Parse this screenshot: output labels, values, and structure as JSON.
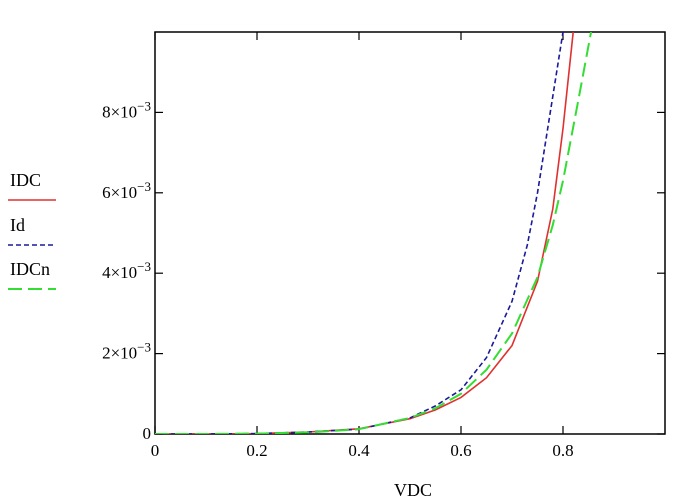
{
  "chart_data": {
    "type": "line",
    "xlabel": "VDC",
    "ylabel": "",
    "xlim": [
      0,
      1.0
    ],
    "ylim": [
      0,
      0.01
    ],
    "x_ticks": [
      {
        "value": 0,
        "label": "0"
      },
      {
        "value": 0.2,
        "label": "0.2"
      },
      {
        "value": 0.4,
        "label": "0.4"
      },
      {
        "value": 0.6,
        "label": "0.6"
      },
      {
        "value": 0.8,
        "label": "0.8"
      }
    ],
    "y_ticks": [
      {
        "value": 0,
        "label": "0",
        "mantissa": "",
        "exponent": ""
      },
      {
        "value": 0.002,
        "label": "2×10⁻³",
        "mantissa": "2",
        "exponent": "−3"
      },
      {
        "value": 0.004,
        "label": "4×10⁻³",
        "mantissa": "4",
        "exponent": "−3"
      },
      {
        "value": 0.006,
        "label": "6×10⁻³",
        "mantissa": "6",
        "exponent": "−3"
      },
      {
        "value": 0.008,
        "label": "8×10⁻³",
        "mantissa": "8",
        "exponent": "−3"
      }
    ],
    "grid": false,
    "legend_position": "left",
    "series": [
      {
        "name": "IDC",
        "color": "#e03030",
        "dash": "solid",
        "x": [
          0,
          0.1,
          0.2,
          0.3,
          0.4,
          0.5,
          0.55,
          0.6,
          0.65,
          0.7,
          0.75,
          0.78,
          0.8,
          0.82
        ],
        "y": [
          0,
          0,
          1e-05,
          5e-05,
          0.00013,
          0.00038,
          0.0006,
          0.00091,
          0.0014,
          0.0022,
          0.0038,
          0.0056,
          0.0076,
          0.01
        ]
      },
      {
        "name": "Id",
        "color": "#1a1a9a",
        "dash": "short-dash",
        "x": [
          0,
          0.1,
          0.2,
          0.3,
          0.4,
          0.5,
          0.55,
          0.6,
          0.65,
          0.7,
          0.73,
          0.75,
          0.78,
          0.8
        ],
        "y": [
          0,
          0,
          1e-05,
          5e-05,
          0.00012,
          0.0004,
          0.0007,
          0.0011,
          0.0019,
          0.0033,
          0.0047,
          0.006,
          0.0084,
          0.01
        ]
      },
      {
        "name": "IDCn",
        "color": "#33dd33",
        "dash": "long-dash",
        "x": [
          0,
          0.1,
          0.2,
          0.3,
          0.4,
          0.5,
          0.55,
          0.6,
          0.65,
          0.7,
          0.75,
          0.78,
          0.8,
          0.83,
          0.855
        ],
        "y": [
          0,
          0,
          1e-05,
          4e-05,
          0.00012,
          0.0004,
          0.00064,
          0.001,
          0.0016,
          0.0025,
          0.0039,
          0.0052,
          0.0063,
          0.0083,
          0.01
        ]
      }
    ]
  }
}
